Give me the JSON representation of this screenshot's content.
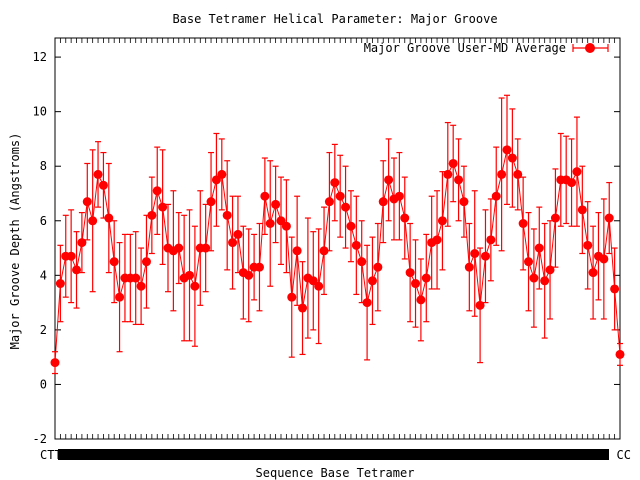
{
  "chart_data": {
    "type": "line",
    "title": "Base Tetramer Helical Parameter: Major Groove",
    "xlabel": "Sequence Base Tetramer",
    "ylabel": "Major Groove Depth (Angstroms)",
    "ylim": [
      -2,
      12.7
    ],
    "yticks": [
      -2,
      0,
      2,
      4,
      6,
      8,
      10,
      12
    ],
    "xtick_first": "CTT",
    "xtick_last": "CC",
    "grid": false,
    "legend_position": "top-right",
    "series": [
      {
        "name": "Major Groove User-MD Average",
        "color": "#ff0000",
        "values": [
          0.8,
          3.7,
          4.7,
          4.7,
          4.2,
          5.2,
          6.7,
          6.0,
          7.7,
          7.3,
          6.1,
          4.5,
          3.2,
          3.9,
          3.9,
          3.9,
          3.6,
          4.5,
          6.2,
          7.1,
          6.5,
          5.0,
          4.9,
          5.0,
          3.9,
          4.0,
          3.6,
          5.0,
          5.0,
          6.7,
          7.5,
          7.7,
          6.2,
          5.2,
          5.5,
          4.1,
          4.0,
          4.3,
          4.3,
          6.9,
          5.9,
          6.6,
          6.0,
          5.8,
          3.2,
          4.9,
          2.8,
          3.9,
          3.8,
          3.6,
          4.9,
          6.7,
          7.4,
          6.9,
          6.5,
          5.8,
          5.1,
          4.5,
          3.0,
          3.8,
          4.3,
          6.7,
          7.5,
          6.8,
          6.9,
          6.1,
          4.1,
          3.7,
          3.1,
          3.9,
          5.2,
          5.3,
          6.0,
          7.7,
          8.1,
          7.5,
          6.7,
          4.3,
          4.8,
          2.9,
          4.7,
          5.3,
          6.9,
          7.7,
          8.6,
          8.3,
          7.7,
          5.9,
          4.5,
          3.9,
          5.0,
          3.8,
          4.2,
          6.1,
          7.5,
          7.5,
          7.4,
          7.8,
          6.4,
          5.1,
          4.1,
          4.7,
          4.6,
          6.1,
          3.5,
          1.1
        ],
        "errors": [
          0.4,
          1.4,
          1.5,
          1.7,
          1.4,
          1.1,
          1.4,
          2.6,
          1.2,
          1.2,
          2.0,
          1.5,
          2.0,
          1.6,
          1.6,
          1.7,
          1.4,
          1.7,
          1.4,
          1.6,
          2.1,
          1.6,
          2.2,
          1.3,
          2.3,
          2.4,
          2.2,
          2.1,
          1.6,
          1.8,
          1.7,
          1.3,
          2.0,
          1.7,
          1.4,
          1.7,
          1.7,
          1.2,
          1.6,
          1.4,
          2.3,
          1.4,
          1.6,
          1.7,
          2.2,
          2.0,
          1.7,
          2.2,
          1.8,
          2.1,
          1.6,
          1.8,
          1.4,
          1.5,
          1.5,
          1.3,
          1.8,
          1.5,
          2.1,
          1.6,
          1.6,
          1.5,
          1.5,
          1.5,
          1.6,
          1.5,
          1.8,
          1.6,
          1.5,
          1.6,
          1.7,
          1.8,
          1.8,
          1.9,
          1.4,
          1.5,
          1.3,
          1.6,
          2.3,
          2.1,
          1.7,
          1.5,
          1.8,
          2.8,
          2.0,
          1.8,
          1.3,
          1.7,
          1.8,
          1.8,
          1.5,
          2.1,
          1.8,
          1.8,
          1.7,
          1.6,
          1.6,
          2.0,
          1.6,
          1.6,
          1.7,
          1.6,
          2.2,
          1.3,
          1.5,
          0.4
        ]
      }
    ]
  }
}
